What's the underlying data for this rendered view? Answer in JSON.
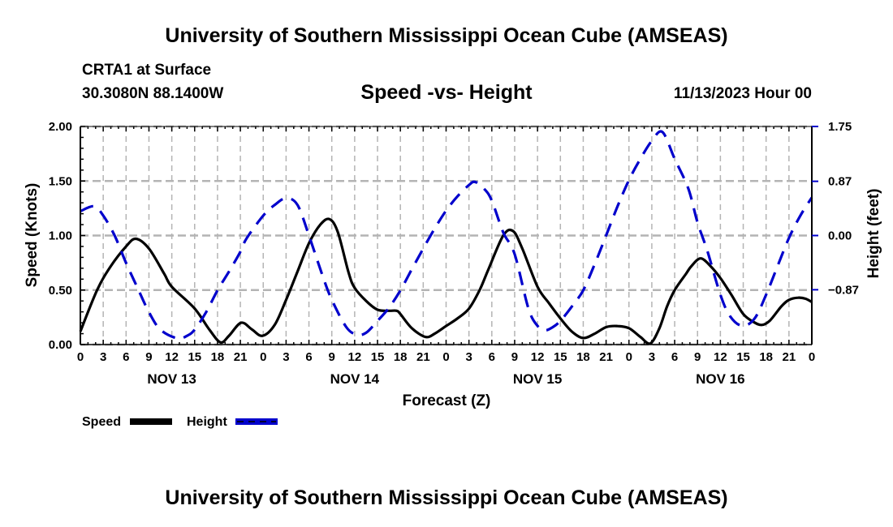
{
  "header": {
    "title": "University of Southern Mississippi Ocean Cube (AMSEAS)",
    "station": "CRTA1 at Surface",
    "coordinates": "30.3080N  88.1400W",
    "subtitle": "Speed -vs- Height",
    "date_hour": "11/13/2023 Hour 00"
  },
  "footer": {
    "title": "University of Southern Mississippi Ocean Cube (AMSEAS)"
  },
  "colors": {
    "speed": "#000000",
    "height": "#0000cc",
    "grid": "#b4b4b4"
  },
  "chart_data": {
    "type": "line",
    "title": "Speed -vs- Height",
    "xlabel": "Forecast (Z)",
    "ylabel": "Speed (Knots)",
    "y2label": "Height (feet)",
    "x_unit": "forecast hour",
    "xlim": [
      0,
      96
    ],
    "ylim": [
      0,
      2.0
    ],
    "y2lim": [
      -1.75,
      1.75
    ],
    "grid": true,
    "x_ticks": [
      0,
      3,
      6,
      9,
      12,
      15,
      18,
      21,
      24,
      27,
      30,
      33,
      36,
      39,
      42,
      45,
      48,
      51,
      54,
      57,
      60,
      63,
      66,
      69,
      72,
      75,
      78,
      81,
      84,
      87,
      90,
      93,
      96
    ],
    "x_tick_labels": [
      "0",
      "3",
      "6",
      "9",
      "12",
      "15",
      "18",
      "21",
      "0",
      "3",
      "6",
      "9",
      "12",
      "15",
      "18",
      "21",
      "0",
      "3",
      "6",
      "9",
      "12",
      "15",
      "18",
      "21",
      "0",
      "3",
      "6",
      "9",
      "12",
      "15",
      "18",
      "21",
      "0"
    ],
    "y_ticks": [
      0,
      0.5,
      1.0,
      1.5,
      2.0
    ],
    "y_tick_labels": [
      "0.00",
      "0.50",
      "1.00",
      "1.50",
      "2.00"
    ],
    "y2_ticks": [
      -0.87,
      0.0,
      0.87,
      1.75
    ],
    "y2_tick_labels": [
      "−0.87",
      "0.00",
      "0.87",
      "1.75"
    ],
    "day_labels": [
      {
        "hour": 12,
        "label": "NOV 13"
      },
      {
        "hour": 36,
        "label": "NOV 14"
      },
      {
        "hour": 60,
        "label": "NOV 15"
      },
      {
        "hour": 84,
        "label": "NOV 16"
      }
    ],
    "legend": {
      "placement": "bottom-left",
      "entries": [
        {
          "label": "Speed",
          "style": "solid"
        },
        {
          "label": "Height",
          "style": "dashed"
        }
      ]
    },
    "series": [
      {
        "name": "Speed",
        "axis": "left",
        "unit": "knots",
        "points": [
          [
            0,
            0.12
          ],
          [
            2.2,
            0.5
          ],
          [
            4,
            0.72
          ],
          [
            6,
            0.9
          ],
          [
            7.3,
            0.97
          ],
          [
            9,
            0.88
          ],
          [
            11,
            0.65
          ],
          [
            12,
            0.53
          ],
          [
            15,
            0.33
          ],
          [
            17,
            0.13
          ],
          [
            18.4,
            0.02
          ],
          [
            19.5,
            0.08
          ],
          [
            21.1,
            0.2
          ],
          [
            22.5,
            0.14
          ],
          [
            23.9,
            0.08
          ],
          [
            25.5,
            0.18
          ],
          [
            27,
            0.41
          ],
          [
            28.5,
            0.67
          ],
          [
            30,
            0.93
          ],
          [
            31.5,
            1.1
          ],
          [
            32.7,
            1.15
          ],
          [
            33.8,
            1.03
          ],
          [
            35.2,
            0.66
          ],
          [
            36,
            0.52
          ],
          [
            37.5,
            0.4
          ],
          [
            39,
            0.32
          ],
          [
            40.5,
            0.31
          ],
          [
            41.5,
            0.31
          ],
          [
            42,
            0.28
          ],
          [
            43.5,
            0.15
          ],
          [
            45.3,
            0.07
          ],
          [
            46.5,
            0.1
          ],
          [
            48,
            0.17
          ],
          [
            49.5,
            0.24
          ],
          [
            51,
            0.33
          ],
          [
            52.4,
            0.5
          ],
          [
            53.5,
            0.68
          ],
          [
            55.5,
            1.0
          ],
          [
            56.8,
            1.04
          ],
          [
            58,
            0.88
          ],
          [
            60,
            0.53
          ],
          [
            61.5,
            0.38
          ],
          [
            63,
            0.24
          ],
          [
            64.5,
            0.12
          ],
          [
            66,
            0.06
          ],
          [
            67.5,
            0.1
          ],
          [
            69,
            0.16
          ],
          [
            70.4,
            0.17
          ],
          [
            72,
            0.15
          ],
          [
            73.5,
            0.07
          ],
          [
            74.8,
            0.01
          ],
          [
            76,
            0.15
          ],
          [
            77,
            0.35
          ],
          [
            78,
            0.5
          ],
          [
            79.5,
            0.65
          ],
          [
            80.2,
            0.72
          ],
          [
            81.4,
            0.79
          ],
          [
            82.7,
            0.72
          ],
          [
            84,
            0.61
          ],
          [
            85.5,
            0.45
          ],
          [
            87,
            0.28
          ],
          [
            88.3,
            0.21
          ],
          [
            89.4,
            0.18
          ],
          [
            90.5,
            0.22
          ],
          [
            92,
            0.35
          ],
          [
            93,
            0.41
          ],
          [
            94.2,
            0.43
          ],
          [
            95.2,
            0.42
          ],
          [
            96,
            0.39
          ]
        ]
      },
      {
        "name": "Height",
        "axis": "right",
        "unit": "feet",
        "points": [
          [
            0,
            0.39
          ],
          [
            1.8,
            0.47
          ],
          [
            3,
            0.32
          ],
          [
            4.5,
            0.0
          ],
          [
            6,
            -0.44
          ],
          [
            7.5,
            -0.84
          ],
          [
            9,
            -1.23
          ],
          [
            10.5,
            -1.51
          ],
          [
            12.7,
            -1.65
          ],
          [
            14,
            -1.61
          ],
          [
            15,
            -1.51
          ],
          [
            16.5,
            -1.23
          ],
          [
            18,
            -0.88
          ],
          [
            19.5,
            -0.58
          ],
          [
            21,
            -0.26
          ],
          [
            21.8,
            -0.05
          ],
          [
            24,
            0.32
          ],
          [
            25.5,
            0.49
          ],
          [
            27,
            0.6
          ],
          [
            28.5,
            0.49
          ],
          [
            30,
            0.0
          ],
          [
            31.8,
            -0.65
          ],
          [
            33,
            -1.03
          ],
          [
            34.9,
            -1.47
          ],
          [
            36.3,
            -1.59
          ],
          [
            37.5,
            -1.56
          ],
          [
            39,
            -1.37
          ],
          [
            40.5,
            -1.16
          ],
          [
            42,
            -0.88
          ],
          [
            43.5,
            -0.54
          ],
          [
            45,
            -0.21
          ],
          [
            46.5,
            0.11
          ],
          [
            48,
            0.4
          ],
          [
            49.5,
            0.63
          ],
          [
            51,
            0.81
          ],
          [
            51.8,
            0.86
          ],
          [
            53,
            0.75
          ],
          [
            54,
            0.56
          ],
          [
            55.5,
            0.05
          ],
          [
            57,
            -0.3
          ],
          [
            58.8,
            -1.17
          ],
          [
            60,
            -1.45
          ],
          [
            61,
            -1.52
          ],
          [
            62,
            -1.47
          ],
          [
            63,
            -1.37
          ],
          [
            64.5,
            -1.14
          ],
          [
            66,
            -0.88
          ],
          [
            67.5,
            -0.46
          ],
          [
            69,
            0.0
          ],
          [
            70.5,
            0.47
          ],
          [
            72,
            0.89
          ],
          [
            73.5,
            1.23
          ],
          [
            75,
            1.52
          ],
          [
            76.4,
            1.66
          ],
          [
            78,
            1.23
          ],
          [
            79.8,
            0.75
          ],
          [
            81,
            0.21
          ],
          [
            82.3,
            -0.25
          ],
          [
            84,
            -0.95
          ],
          [
            85.3,
            -1.3
          ],
          [
            86.9,
            -1.45
          ],
          [
            88.5,
            -1.33
          ],
          [
            90,
            -0.95
          ],
          [
            91.5,
            -0.49
          ],
          [
            93,
            -0.04
          ],
          [
            94.5,
            0.32
          ],
          [
            96,
            0.61
          ]
        ]
      }
    ]
  }
}
